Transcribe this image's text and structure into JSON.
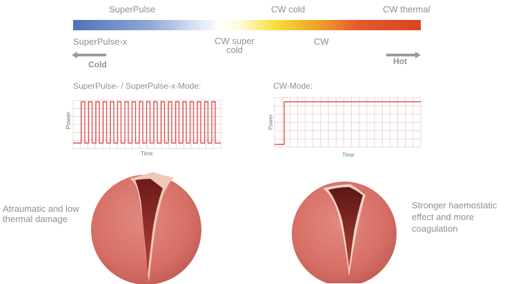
{
  "scale": {
    "top_labels": [
      "SuperPulse",
      "CW cold",
      "CW thermal"
    ],
    "bottom_labels": [
      "SuperPulse-x",
      "CW super cold",
      "CW"
    ],
    "cold_label": "Cold",
    "hot_label": "Hot",
    "colors": {
      "cold": "#4f72b8",
      "neutral": "#ffffff",
      "warm": "#f6df3a",
      "hot": "#d84424"
    }
  },
  "charts": {
    "pulse": {
      "title": "SuperPulse- / SuperPulse-x-Mode:",
      "ylabel": "Power",
      "xlabel": "Time"
    },
    "cw": {
      "title": "CW-Mode:",
      "ylabel": "Power",
      "xlabel": "Time"
    }
  },
  "captions": {
    "left": [
      "Atraumatic and low",
      "thermal damage"
    ],
    "right": [
      "Stronger haemostatic",
      "effect and more",
      "coagulation"
    ]
  },
  "colors": {
    "line": "#d9534f",
    "grid": "#f0c9c9",
    "tissue": "#d9726a",
    "text": "#8f8f8f"
  }
}
